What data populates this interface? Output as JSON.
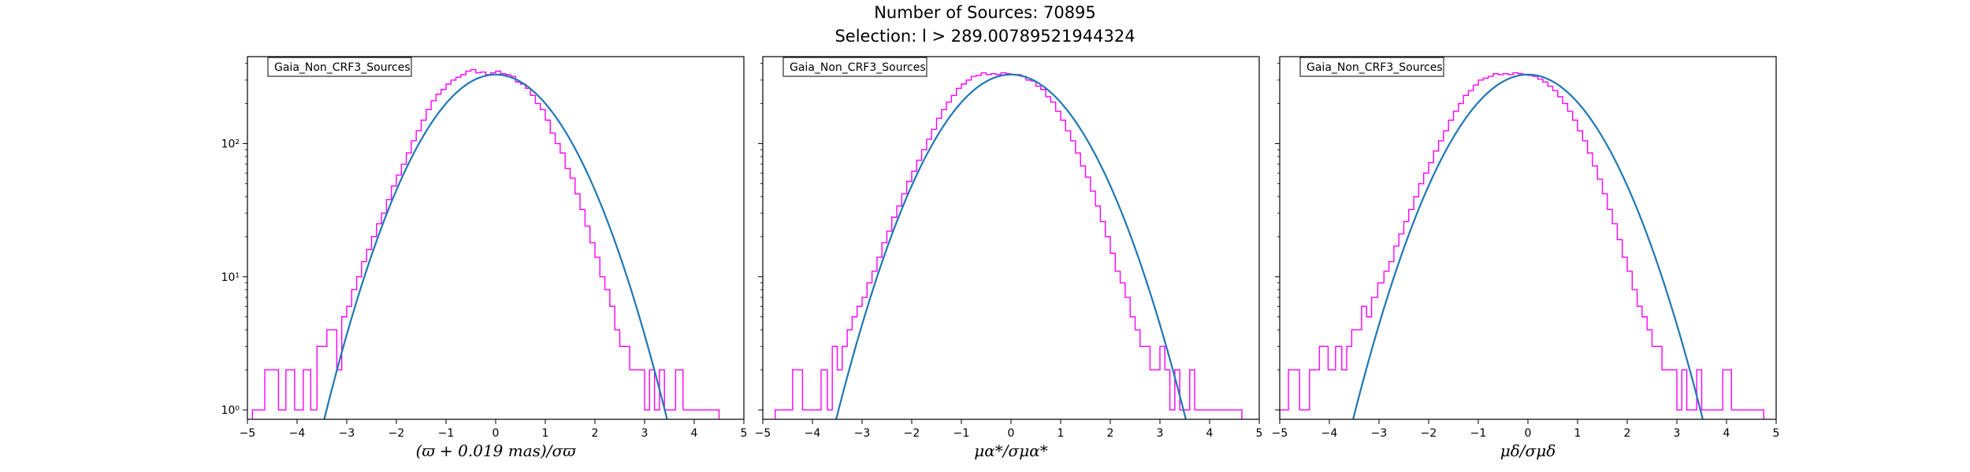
{
  "figure": {
    "title_line1": "Number of Sources: 70895",
    "title_line2": "Selection: l > 289.00789521944324"
  },
  "chart_data": [
    {
      "type": "line",
      "legend": "Gaia_Non_CRF3_Sources",
      "legend_placement": "top-left",
      "xlabel": "(ϖ + 0.019 mas)/σϖ",
      "ylabel": "",
      "xlim": [
        -5,
        5
      ],
      "ylim": [
        0.85,
        450
      ],
      "yscale": "log",
      "xticks": [
        "−5",
        "−4",
        "−3",
        "−2",
        "−1",
        "0",
        "1",
        "2",
        "3",
        "4",
        "5"
      ],
      "yticks": [
        "10⁰",
        "10¹",
        "10²"
      ],
      "grid": false,
      "series": [
        {
          "kind": "step-histogram",
          "color": "#ff00ff",
          "x": [
            -4.85,
            -4.45,
            -4.3,
            -4.15,
            -3.95,
            -3.8,
            -3.65,
            -3.55,
            -3.45,
            -3.35,
            -3.25,
            -3.15,
            -3.05,
            -2.95,
            -2.85,
            -2.75,
            -2.65,
            -2.55,
            -2.45,
            -2.35,
            -2.25,
            -2.15,
            -2.05,
            -1.95,
            -1.85,
            -1.75,
            -1.65,
            -1.55,
            -1.45,
            -1.35,
            -1.25,
            -1.15,
            -1.05,
            -0.95,
            -0.85,
            -0.75,
            -0.65,
            -0.55,
            -0.45,
            -0.35,
            -0.25,
            -0.15,
            -0.05,
            0.05,
            0.15,
            0.25,
            0.35,
            0.45,
            0.55,
            0.65,
            0.75,
            0.85,
            0.95,
            1.05,
            1.15,
            1.25,
            1.35,
            1.45,
            1.55,
            1.65,
            1.75,
            1.85,
            1.95,
            2.05,
            2.15,
            2.25,
            2.35,
            2.45,
            2.55,
            2.65,
            2.75,
            2.85,
            2.95,
            3.05,
            3.15,
            3.25,
            3.35,
            3.45,
            3.55,
            3.7,
            3.85,
            4.0,
            4.2,
            4.45
          ],
          "y": [
            1,
            2,
            1,
            2,
            1,
            2,
            1,
            3,
            3,
            4,
            4,
            2,
            5,
            6,
            8,
            10,
            13,
            16,
            20,
            25,
            30,
            38,
            48,
            58,
            70,
            85,
            105,
            125,
            150,
            180,
            210,
            235,
            255,
            280,
            300,
            315,
            330,
            350,
            360,
            340,
            345,
            330,
            340,
            350,
            335,
            330,
            320,
            290,
            280,
            260,
            230,
            200,
            180,
            150,
            120,
            100,
            85,
            65,
            55,
            42,
            32,
            24,
            18,
            14,
            10,
            8,
            6,
            4,
            3,
            3,
            2,
            2,
            2,
            1,
            2,
            1,
            2,
            1,
            1,
            2,
            1,
            1,
            1,
            1
          ]
        },
        {
          "kind": "gaussian-fit",
          "color": "#1f77b4",
          "amplitude": 330,
          "mean": 0.0,
          "sigma": 1.0
        }
      ]
    },
    {
      "type": "line",
      "legend": "Gaia_Non_CRF3_Sources",
      "legend_placement": "top-left",
      "xlabel": "μα*/σμα*",
      "ylabel": "",
      "xlim": [
        -5,
        5
      ],
      "ylim": [
        0.85,
        450
      ],
      "yscale": "log",
      "xticks": [
        "−5",
        "−4",
        "−3",
        "−2",
        "−1",
        "0",
        "1",
        "2",
        "3",
        "4",
        "5"
      ],
      "yticks": [
        "10⁰",
        "10¹",
        "10²"
      ],
      "grid": false,
      "series": [
        {
          "kind": "step-histogram",
          "color": "#ff00ff",
          "x": [
            -4.7,
            -4.5,
            -4.3,
            -4.1,
            -3.9,
            -3.75,
            -3.65,
            -3.55,
            -3.45,
            -3.35,
            -3.25,
            -3.15,
            -3.05,
            -2.95,
            -2.85,
            -2.75,
            -2.65,
            -2.55,
            -2.45,
            -2.35,
            -2.25,
            -2.15,
            -2.05,
            -1.95,
            -1.85,
            -1.75,
            -1.65,
            -1.55,
            -1.45,
            -1.35,
            -1.25,
            -1.15,
            -1.05,
            -0.95,
            -0.85,
            -0.75,
            -0.65,
            -0.55,
            -0.45,
            -0.35,
            -0.25,
            -0.15,
            -0.05,
            0.05,
            0.15,
            0.25,
            0.35,
            0.45,
            0.55,
            0.65,
            0.75,
            0.85,
            0.95,
            1.05,
            1.15,
            1.25,
            1.35,
            1.45,
            1.55,
            1.65,
            1.75,
            1.85,
            1.95,
            2.05,
            2.15,
            2.25,
            2.35,
            2.45,
            2.55,
            2.65,
            2.75,
            2.85,
            2.95,
            3.05,
            3.15,
            3.25,
            3.35,
            3.45,
            3.55,
            3.65,
            3.75,
            3.9,
            4.1,
            4.3,
            4.6
          ],
          "y": [
            1,
            1,
            2,
            1,
            1,
            2,
            1,
            3,
            2,
            3,
            4,
            5,
            6,
            7,
            9,
            11,
            14,
            18,
            22,
            28,
            34,
            42,
            52,
            62,
            75,
            90,
            108,
            128,
            155,
            180,
            205,
            230,
            260,
            280,
            300,
            320,
            325,
            340,
            330,
            335,
            330,
            340,
            335,
            330,
            330,
            320,
            300,
            295,
            270,
            255,
            225,
            205,
            175,
            150,
            125,
            105,
            85,
            68,
            56,
            44,
            34,
            26,
            20,
            15,
            11,
            9,
            7,
            5,
            4,
            3,
            3,
            2,
            2,
            3,
            2,
            1,
            2,
            1,
            1,
            2,
            1,
            1,
            1,
            1,
            1
          ]
        },
        {
          "kind": "gaussian-fit",
          "color": "#1f77b4",
          "amplitude": 330,
          "mean": 0.0,
          "sigma": 1.02
        }
      ]
    },
    {
      "type": "line",
      "legend": "Gaia_Non_CRF3_Sources",
      "legend_placement": "top-left",
      "xlabel": "μδ/σμδ",
      "ylabel": "",
      "xlim": [
        -5,
        5
      ],
      "ylim": [
        0.85,
        450
      ],
      "yscale": "log",
      "xticks": [
        "−5",
        "−4",
        "−3",
        "−2",
        "−1",
        "0",
        "1",
        "2",
        "3",
        "4",
        "5"
      ],
      "yticks": [
        "10⁰",
        "10¹",
        "10²"
      ],
      "grid": false,
      "series": [
        {
          "kind": "step-histogram",
          "color": "#ff00ff",
          "x": [
            -4.95,
            -4.7,
            -4.5,
            -4.3,
            -4.1,
            -3.95,
            -3.8,
            -3.7,
            -3.6,
            -3.5,
            -3.4,
            -3.3,
            -3.2,
            -3.1,
            -2.95,
            -2.85,
            -2.75,
            -2.65,
            -2.55,
            -2.45,
            -2.35,
            -2.25,
            -2.15,
            -2.05,
            -1.95,
            -1.85,
            -1.75,
            -1.65,
            -1.55,
            -1.45,
            -1.35,
            -1.25,
            -1.15,
            -1.05,
            -0.95,
            -0.85,
            -0.75,
            -0.65,
            -0.55,
            -0.45,
            -0.35,
            -0.25,
            -0.15,
            -0.05,
            0.05,
            0.15,
            0.25,
            0.35,
            0.45,
            0.55,
            0.65,
            0.75,
            0.85,
            0.95,
            1.05,
            1.15,
            1.25,
            1.35,
            1.45,
            1.55,
            1.65,
            1.75,
            1.85,
            1.95,
            2.05,
            2.15,
            2.25,
            2.35,
            2.45,
            2.55,
            2.65,
            2.75,
            2.85,
            2.95,
            3.05,
            3.15,
            3.25,
            3.35,
            3.45,
            3.55,
            3.7,
            3.85,
            4.0,
            4.2,
            4.45,
            4.7
          ],
          "y": [
            1,
            2,
            1,
            2,
            3,
            2,
            3,
            2,
            3,
            4,
            4,
            6,
            5,
            7,
            9,
            11,
            13,
            17,
            21,
            26,
            32,
            40,
            50,
            60,
            72,
            88,
            105,
            125,
            150,
            175,
            200,
            230,
            250,
            275,
            300,
            310,
            320,
            335,
            330,
            335,
            330,
            340,
            335,
            330,
            325,
            320,
            305,
            290,
            270,
            250,
            225,
            200,
            175,
            150,
            125,
            105,
            85,
            68,
            54,
            42,
            32,
            25,
            19,
            14,
            11,
            8,
            6,
            5,
            4,
            3,
            3,
            2,
            2,
            2,
            1,
            2,
            1,
            1,
            2,
            1,
            1,
            1,
            2,
            1,
            1,
            1
          ]
        },
        {
          "kind": "gaussian-fit",
          "color": "#1f77b4",
          "amplitude": 330,
          "mean": 0.0,
          "sigma": 1.02
        }
      ]
    }
  ]
}
